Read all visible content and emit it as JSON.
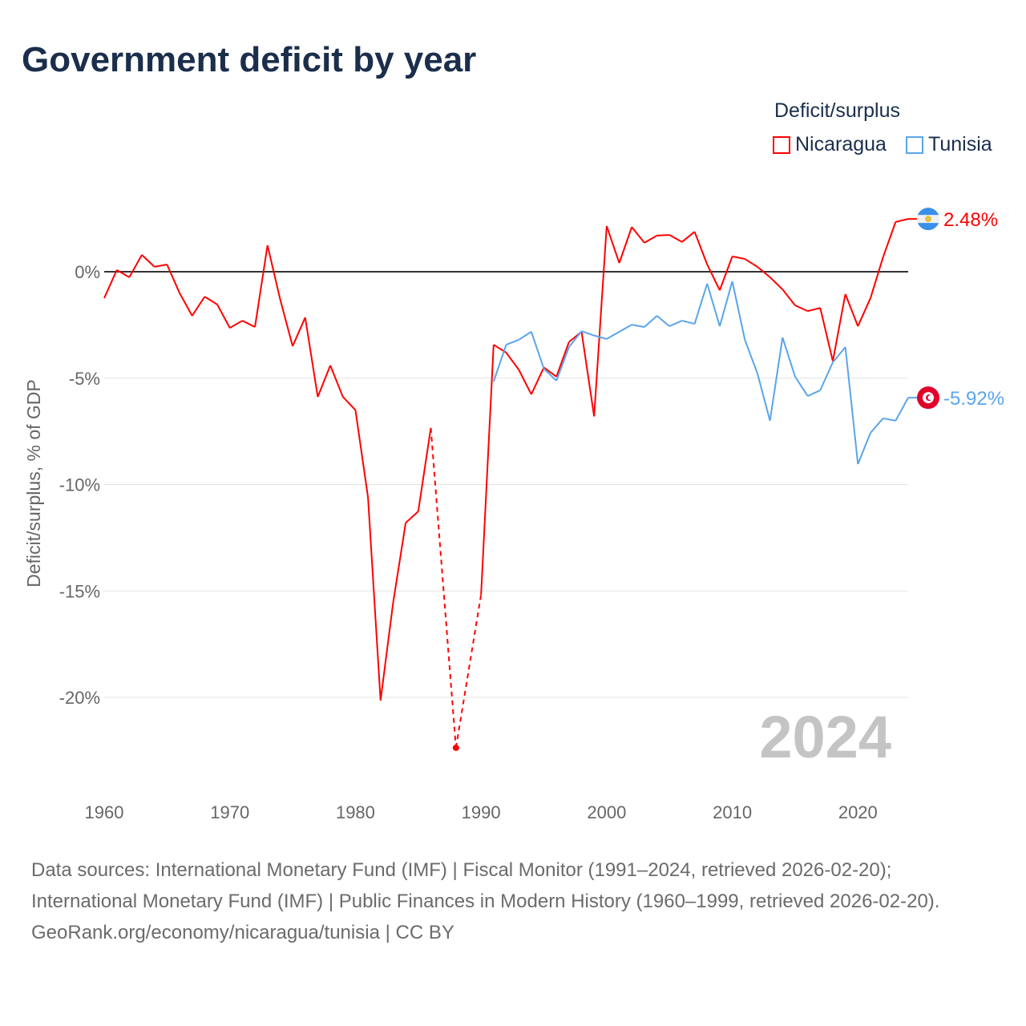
{
  "title": "Government deficit by year",
  "legend": {
    "title": "Deficit/surplus",
    "items": [
      {
        "name": "Nicaragua",
        "color": "#ff0000"
      },
      {
        "name": "Tunisia",
        "color": "#5aa5ea"
      }
    ]
  },
  "chart_data": {
    "type": "line",
    "title": "Government deficit by year",
    "xlabel": "",
    "ylabel": "Deficit/surplus, % of GDP",
    "xlim": [
      1960,
      2024
    ],
    "ylim": [
      -23,
      3
    ],
    "xticks": [
      "1960",
      "1970",
      "1980",
      "1990",
      "2000",
      "2010",
      "2020"
    ],
    "yticks": [
      {
        "v": 0,
        "label": "0%"
      },
      {
        "v": -5,
        "label": "-5%"
      },
      {
        "v": -10,
        "label": "-10%"
      },
      {
        "v": -15,
        "label": "-15%"
      },
      {
        "v": -20,
        "label": "-20%"
      }
    ],
    "year_watermark": "2024",
    "series": [
      {
        "name": "Nicaragua",
        "color": "#ff0000",
        "end_label": "2.48%",
        "start": 1960,
        "values": [
          -1.24,
          0.08,
          -0.26,
          0.79,
          0.23,
          0.34,
          -1.0,
          -2.07,
          -1.17,
          -1.54,
          -2.64,
          -2.3,
          -2.6,
          1.24,
          -1.28,
          -3.5,
          -2.15,
          -5.88,
          -4.4,
          -5.88,
          -6.5,
          -10.6,
          -20.15,
          -15.55,
          -11.8,
          -11.26,
          -7.34,
          null,
          -22.37,
          null,
          -15.18,
          -3.43,
          -3.8,
          -4.6,
          -5.76,
          -4.5,
          -4.93,
          -3.3,
          -2.82,
          -6.8,
          2.15,
          0.41,
          2.1,
          1.36,
          1.7,
          1.73,
          1.4,
          1.88,
          0.34,
          -0.87,
          0.72,
          0.6,
          0.23,
          -0.26,
          -0.83,
          -1.58,
          -1.85,
          -1.7,
          -4.2,
          -1.05,
          -2.56,
          -1.24,
          0.68,
          2.34,
          2.48
        ]
      },
      {
        "name": "Tunisia",
        "color": "#5aa5ea",
        "end_label": "-5.92%",
        "start": 1991,
        "values": [
          -5.16,
          -3.43,
          -3.2,
          -2.82,
          -4.56,
          -5.12,
          -3.54,
          -2.79,
          -3.0,
          -3.16,
          -2.82,
          -2.49,
          -2.6,
          -2.07,
          -2.56,
          -2.3,
          -2.45,
          -0.56,
          -2.56,
          -0.45,
          -3.2,
          -4.78,
          -7.0,
          -3.09,
          -4.93,
          -5.84,
          -5.57,
          -4.26,
          -3.54,
          -9.04,
          -7.57,
          -6.89,
          -7.0,
          -5.92
        ]
      }
    ]
  },
  "sources": {
    "line1": "Data sources: International Monetary Fund (IMF) | Fiscal Monitor (1991–2024, retrieved 2026-02-20); International Monetary Fund (IMF) | Public Finances in Modern History (1960–1999, retrieved 2026-02-20).",
    "line2": "GeoRank.org/economy/nicaragua/tunisia | CC BY"
  }
}
